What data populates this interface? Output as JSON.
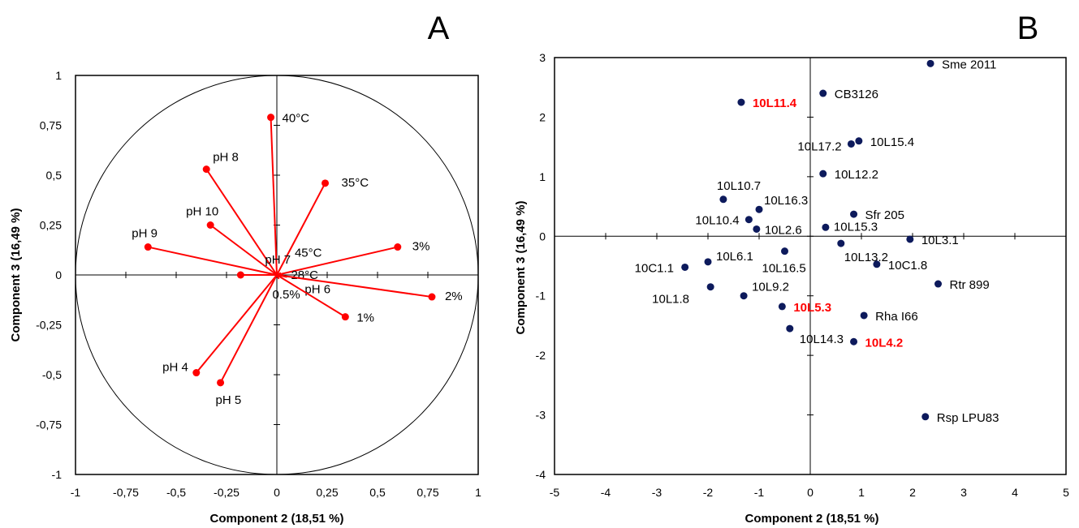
{
  "chart_data": [
    {
      "type": "scatter",
      "panel": "A",
      "xlabel": "Component  2 (18,51 %)",
      "ylabel": "Component  3 (16,49 %)",
      "xlim": [
        -1,
        1
      ],
      "ylim": [
        -1,
        1
      ],
      "x_ticks": [
        "-1",
        "-0,75",
        "-0,5",
        "-0,25",
        "0",
        "0,25",
        "0,5",
        "0,75",
        "1"
      ],
      "y_ticks": [
        "-1",
        "-0,75",
        "-0,5",
        "-0,25",
        "0",
        "0,25",
        "0,5",
        "0,75",
        "1"
      ],
      "unit_circle": true,
      "vector_color": "#ff0000",
      "vectors": [
        {
          "label": "40°C",
          "x": -0.03,
          "y": 0.79
        },
        {
          "label": "pH 8",
          "x": -0.35,
          "y": 0.53
        },
        {
          "label": "35°C",
          "x": 0.24,
          "y": 0.46
        },
        {
          "label": "pH 10",
          "x": -0.33,
          "y": 0.25
        },
        {
          "label": "pH 9",
          "x": -0.64,
          "y": 0.14
        },
        {
          "label": "3%",
          "x": 0.6,
          "y": 0.14
        },
        {
          "label": "pH 7",
          "x": -0.18,
          "y": 0.0
        },
        {
          "label": "45°C",
          "x": 0.02,
          "y": 0.01
        },
        {
          "label": "28°C",
          "x": 0.03,
          "y": 0.0
        },
        {
          "label": "pH 6",
          "x": 0.05,
          "y": -0.01
        },
        {
          "label": "0.5%",
          "x": 0.01,
          "y": -0.02
        },
        {
          "label": "2%",
          "x": 0.77,
          "y": -0.11
        },
        {
          "label": "1%",
          "x": 0.34,
          "y": -0.21
        },
        {
          "label": "pH 4",
          "x": -0.4,
          "y": -0.49
        },
        {
          "label": "pH 5",
          "x": -0.28,
          "y": -0.54
        }
      ]
    },
    {
      "type": "scatter",
      "panel": "B",
      "xlabel": "Component  2 (18,51 %)",
      "ylabel": "Component  3 (16,49 %)",
      "xlim": [
        -5,
        5
      ],
      "ylim": [
        -4,
        3
      ],
      "x_ticks": [
        "-5",
        "-4",
        "-3",
        "-2",
        "-1",
        "0",
        "1",
        "2",
        "3",
        "4",
        "5"
      ],
      "y_ticks": [
        "-4",
        "-3",
        "-2",
        "-1",
        "0",
        "1",
        "2",
        "3"
      ],
      "point_color": "#0d1a5c",
      "highlight_color": "#ff0000",
      "points": [
        {
          "label": "Sme 2011",
          "x": 2.35,
          "y": 2.9
        },
        {
          "label": "CB3126",
          "x": 0.25,
          "y": 2.4
        },
        {
          "label": "10L11.4",
          "x": -1.35,
          "y": 2.25,
          "highlight": true
        },
        {
          "label": "10L15.4",
          "x": 0.95,
          "y": 1.6
        },
        {
          "label": "10L17.2",
          "x": 0.8,
          "y": 1.55
        },
        {
          "label": "10L12.2",
          "x": 0.25,
          "y": 1.05
        },
        {
          "label": "10L10.7",
          "x": -1.7,
          "y": 0.62
        },
        {
          "label": "10L16.3",
          "x": -1.0,
          "y": 0.45
        },
        {
          "label": "10L10.4",
          "x": -1.2,
          "y": 0.28
        },
        {
          "label": "10L2.6",
          "x": -1.05,
          "y": 0.12
        },
        {
          "label": "Sfr 205",
          "x": 0.85,
          "y": 0.37
        },
        {
          "label": "10L15.3",
          "x": 0.3,
          "y": 0.15
        },
        {
          "label": "10L3.1",
          "x": 1.95,
          "y": -0.05
        },
        {
          "label": "10L13.2",
          "x": 0.6,
          "y": -0.12
        },
        {
          "label": "10L16.5",
          "x": -0.5,
          "y": -0.25
        },
        {
          "label": "10L6.1",
          "x": -2.0,
          "y": -0.43
        },
        {
          "label": "10C1.1",
          "x": -2.45,
          "y": -0.52
        },
        {
          "label": "10C1.8",
          "x": 1.3,
          "y": -0.47
        },
        {
          "label": "Rtr 899",
          "x": 2.5,
          "y": -0.8
        },
        {
          "label": "10L9.2",
          "x": -1.3,
          "y": -1.0
        },
        {
          "label": "10L1.8",
          "x": -1.95,
          "y": -0.85
        },
        {
          "label": "10L5.3",
          "x": -0.55,
          "y": -1.18,
          "highlight": true
        },
        {
          "label": "Rha I66",
          "x": 1.05,
          "y": -1.33
        },
        {
          "label": "10L14.3",
          "x": -0.4,
          "y": -1.55
        },
        {
          "label": "10L4.2",
          "x": 0.85,
          "y": -1.77,
          "highlight": true
        },
        {
          "label": "Rsp LPU83",
          "x": 2.25,
          "y": -3.03
        }
      ]
    }
  ]
}
